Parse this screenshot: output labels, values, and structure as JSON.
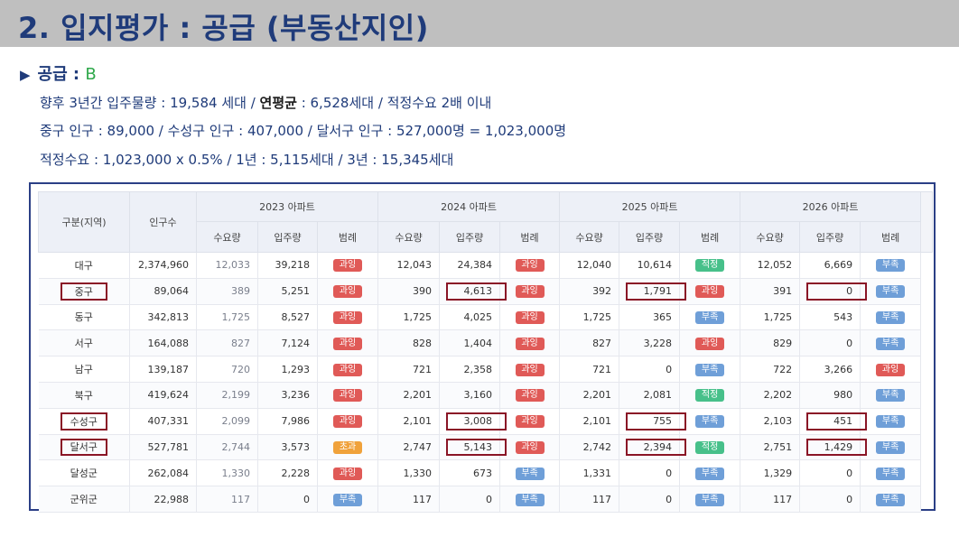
{
  "title": "2. 입지평가 : 공급 (부동산지인)",
  "section": {
    "label": "공급 : ",
    "grade": "B"
  },
  "lines": [
    {
      "pre": "향후 3년간 입주물량 : 19,584 세대  / ",
      "bold": "연평균",
      "post": " : 6,528세대 / 적정수요 2배 이내"
    },
    {
      "pre": "중구 인구 : 89,000 / 수성구 인구 : 407,000  / 달서구 인구 : 527,000명 = 1,023,000명",
      "bold": "",
      "post": ""
    },
    {
      "pre": "적정수요  : 1,023,000 x 0.5% / 1년 : 5,115세대 / 3년 : 15,345세대",
      "bold": "",
      "post": ""
    }
  ],
  "table": {
    "header": {
      "region": "구분(지역)",
      "population": "인구수",
      "years": [
        "2023 아파트",
        "2024 아파트",
        "2025 아파트",
        "2026 아파트"
      ],
      "sub": [
        "수요량",
        "입주량",
        "범례"
      ]
    },
    "rows": [
      {
        "region": "대구",
        "pop": "2,374,960",
        "d": [
          [
            "12,033",
            "39,218",
            "과잉"
          ],
          [
            "12,043",
            "24,384",
            "과잉"
          ],
          [
            "12,040",
            "10,614",
            "적정"
          ],
          [
            "12,052",
            "6,669",
            "부족"
          ]
        ]
      },
      {
        "region": "중구",
        "pop": "89,064",
        "d": [
          [
            "389",
            "5,251",
            "과잉"
          ],
          [
            "390",
            "4,613",
            "과잉"
          ],
          [
            "392",
            "1,791",
            "과잉"
          ],
          [
            "391",
            "0",
            "부족"
          ]
        ]
      },
      {
        "region": "동구",
        "pop": "342,813",
        "d": [
          [
            "1,725",
            "8,527",
            "과잉"
          ],
          [
            "1,725",
            "4,025",
            "과잉"
          ],
          [
            "1,725",
            "365",
            "부족"
          ],
          [
            "1,725",
            "543",
            "부족"
          ]
        ]
      },
      {
        "region": "서구",
        "pop": "164,088",
        "d": [
          [
            "827",
            "7,124",
            "과잉"
          ],
          [
            "828",
            "1,404",
            "과잉"
          ],
          [
            "827",
            "3,228",
            "과잉"
          ],
          [
            "829",
            "0",
            "부족"
          ]
        ]
      },
      {
        "region": "남구",
        "pop": "139,187",
        "d": [
          [
            "720",
            "1,293",
            "과잉"
          ],
          [
            "721",
            "2,358",
            "과잉"
          ],
          [
            "721",
            "0",
            "부족"
          ],
          [
            "722",
            "3,266",
            "과잉"
          ]
        ]
      },
      {
        "region": "북구",
        "pop": "419,624",
        "d": [
          [
            "2,199",
            "3,236",
            "과잉"
          ],
          [
            "2,201",
            "3,160",
            "과잉"
          ],
          [
            "2,201",
            "2,081",
            "적정"
          ],
          [
            "2,202",
            "980",
            "부족"
          ]
        ]
      },
      {
        "region": "수성구",
        "pop": "407,331",
        "d": [
          [
            "2,099",
            "7,986",
            "과잉"
          ],
          [
            "2,101",
            "3,008",
            "과잉"
          ],
          [
            "2,101",
            "755",
            "부족"
          ],
          [
            "2,103",
            "451",
            "부족"
          ]
        ]
      },
      {
        "region": "달서구",
        "pop": "527,781",
        "d": [
          [
            "2,744",
            "3,573",
            "초과"
          ],
          [
            "2,747",
            "5,143",
            "과잉"
          ],
          [
            "2,742",
            "2,394",
            "적정"
          ],
          [
            "2,751",
            "1,429",
            "부족"
          ]
        ]
      },
      {
        "region": "달성군",
        "pop": "262,084",
        "d": [
          [
            "1,330",
            "2,228",
            "과잉"
          ],
          [
            "1,330",
            "673",
            "부족"
          ],
          [
            "1,331",
            "0",
            "부족"
          ],
          [
            "1,329",
            "0",
            "부족"
          ]
        ]
      },
      {
        "region": "군위군",
        "pop": "22,988",
        "d": [
          [
            "117",
            "0",
            "부족"
          ],
          [
            "117",
            "0",
            "부족"
          ],
          [
            "117",
            "0",
            "부족"
          ],
          [
            "117",
            "0",
            "부족"
          ]
        ]
      }
    ],
    "badge_colors": {
      "과잉": "#e05a57",
      "부족": "#6f9fd8",
      "적정": "#47c08a",
      "초과": "#f0a23b"
    },
    "highlight_color": "#8a1526",
    "highlighted_regions": [
      "중구",
      "수성구",
      "달서구"
    ],
    "highlighted_cells": [
      {
        "row": 1,
        "year": 1
      },
      {
        "row": 1,
        "year": 2
      },
      {
        "row": 1,
        "year": 3
      },
      {
        "row": 6,
        "year": 1
      },
      {
        "row": 6,
        "year": 2
      },
      {
        "row": 6,
        "year": 3
      },
      {
        "row": 7,
        "year": 1
      },
      {
        "row": 7,
        "year": 2
      },
      {
        "row": 7,
        "year": 3
      }
    ]
  }
}
